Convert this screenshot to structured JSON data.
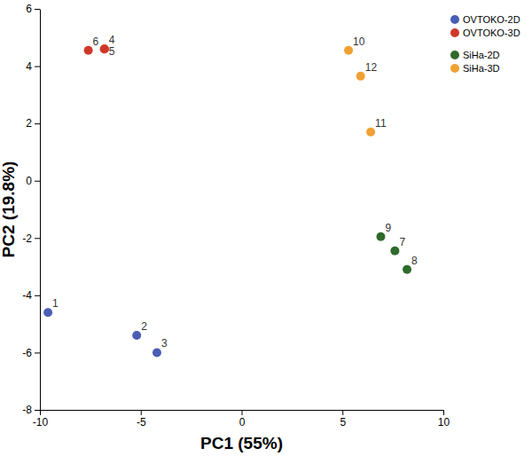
{
  "chart_data": {
    "type": "scatter",
    "x_label": "PC1 (55%)",
    "y_label": "PC2 (19.8%)",
    "xlim": [
      -10,
      10
    ],
    "xticks": [
      -10,
      -5,
      0,
      5,
      10
    ],
    "ylim": [
      -8,
      6
    ],
    "yticks": [
      -8,
      -6,
      -4,
      -2,
      0,
      2,
      4,
      6
    ],
    "legend": "right",
    "marker": "circle",
    "series": [
      {
        "name": "OVTOKO-2D",
        "color": "#4b5db5",
        "x": [
          -9.6,
          -5.2,
          -4.2
        ],
        "y": [
          -4.6,
          -5.4,
          -6.0
        ],
        "point_labels": [
          "1",
          "2",
          "3"
        ]
      },
      {
        "name": "OVTOKO-3D",
        "color": "#d0372a",
        "x": [
          -6.8,
          -6.8,
          -7.6
        ],
        "y": [
          4.6,
          4.6,
          4.55
        ],
        "point_labels": [
          "4",
          "5",
          "6"
        ]
      },
      {
        "name": "SiHa-2D",
        "color": "#2f6b2b",
        "x": [
          7.6,
          8.2,
          6.9
        ],
        "y": [
          -2.45,
          -3.1,
          -1.95
        ],
        "point_labels": [
          "7",
          "8",
          "9"
        ]
      },
      {
        "name": "SiHa-3D",
        "color": "#f0a133",
        "x": [
          5.3,
          6.4,
          5.9
        ],
        "y": [
          4.55,
          1.7,
          3.65
        ],
        "point_labels": [
          "10",
          "11",
          "12"
        ]
      }
    ]
  }
}
